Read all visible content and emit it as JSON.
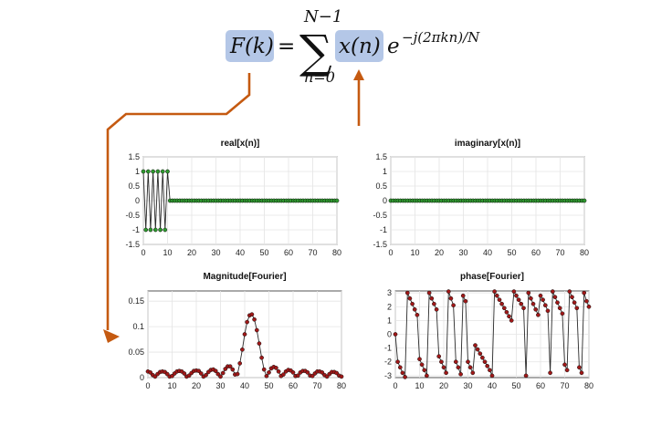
{
  "equation": {
    "lhs": "F(k)",
    "equals": "=",
    "sum_upper": "N−1",
    "sum_symbol": "∑",
    "sum_lower": "n=0",
    "term": "x(n)",
    "exp_base": "e",
    "exp_power": "−j(2πkn)/N",
    "highlight_color": "#b4c7e7"
  },
  "arrow_color": "#c55a11",
  "chart_data": [
    {
      "type": "line",
      "title": "real[x(n)]",
      "xlim": [
        0,
        80
      ],
      "ylim": [
        -1.5,
        1.5
      ],
      "xticks": [
        "0",
        "10",
        "20",
        "30",
        "40",
        "50",
        "60",
        "70",
        "80"
      ],
      "yticks": [
        "1.5",
        "1",
        "0.5",
        "0",
        "-0.5",
        "-1",
        "-1.5"
      ],
      "grid": true,
      "marker_color": "#2e9a2e",
      "x": [
        0,
        1,
        2,
        3,
        4,
        5,
        6,
        7,
        8,
        9,
        10,
        11,
        12,
        13,
        14,
        15,
        16,
        17,
        18,
        19,
        20,
        21,
        22,
        23,
        24,
        25,
        26,
        27,
        28,
        29,
        30,
        31,
        32,
        33,
        34,
        35,
        36,
        37,
        38,
        39,
        40,
        41,
        42,
        43,
        44,
        45,
        46,
        47,
        48,
        49,
        50,
        51,
        52,
        53,
        54,
        55,
        56,
        57,
        58,
        59,
        60,
        61,
        62,
        63,
        64,
        65,
        66,
        67,
        68,
        69,
        70,
        71,
        72,
        73,
        74,
        75,
        76,
        77,
        78,
        79,
        80
      ],
      "values": [
        1,
        -1,
        1,
        -1,
        1,
        -1,
        1,
        -1,
        1,
        -1,
        1,
        0,
        0,
        0,
        0,
        0,
        0,
        0,
        0,
        0,
        0,
        0,
        0,
        0,
        0,
        0,
        0,
        0,
        0,
        0,
        0,
        0,
        0,
        0,
        0,
        0,
        0,
        0,
        0,
        0,
        0,
        0,
        0,
        0,
        0,
        0,
        0,
        0,
        0,
        0,
        0,
        0,
        0,
        0,
        0,
        0,
        0,
        0,
        0,
        0,
        0,
        0,
        0,
        0,
        0,
        0,
        0,
        0,
        0,
        0,
        0,
        0,
        0,
        0,
        0,
        0,
        0,
        0,
        0,
        0,
        0
      ]
    },
    {
      "type": "line",
      "title": "imaginary[x(n)]",
      "xlim": [
        0,
        80
      ],
      "ylim": [
        -1.5,
        1.5
      ],
      "xticks": [
        "0",
        "10",
        "20",
        "30",
        "40",
        "50",
        "60",
        "70",
        "80"
      ],
      "yticks": [
        "1.5",
        "1",
        "0.5",
        "0",
        "-0.5",
        "-1",
        "-1.5"
      ],
      "grid": true,
      "marker_color": "#2e9a2e",
      "x": [
        0,
        1,
        2,
        3,
        4,
        5,
        6,
        7,
        8,
        9,
        10,
        11,
        12,
        13,
        14,
        15,
        16,
        17,
        18,
        19,
        20,
        21,
        22,
        23,
        24,
        25,
        26,
        27,
        28,
        29,
        30,
        31,
        32,
        33,
        34,
        35,
        36,
        37,
        38,
        39,
        40,
        41,
        42,
        43,
        44,
        45,
        46,
        47,
        48,
        49,
        50,
        51,
        52,
        53,
        54,
        55,
        56,
        57,
        58,
        59,
        60,
        61,
        62,
        63,
        64,
        65,
        66,
        67,
        68,
        69,
        70,
        71,
        72,
        73,
        74,
        75,
        76,
        77,
        78,
        79,
        80
      ],
      "values": [
        0,
        0,
        0,
        0,
        0,
        0,
        0,
        0,
        0,
        0,
        0,
        0,
        0,
        0,
        0,
        0,
        0,
        0,
        0,
        0,
        0,
        0,
        0,
        0,
        0,
        0,
        0,
        0,
        0,
        0,
        0,
        0,
        0,
        0,
        0,
        0,
        0,
        0,
        0,
        0,
        0,
        0,
        0,
        0,
        0,
        0,
        0,
        0,
        0,
        0,
        0,
        0,
        0,
        0,
        0,
        0,
        0,
        0,
        0,
        0,
        0,
        0,
        0,
        0,
        0,
        0,
        0,
        0,
        0,
        0,
        0,
        0,
        0,
        0,
        0,
        0,
        0,
        0,
        0,
        0,
        0
      ]
    },
    {
      "type": "line",
      "title": "Magnitude[Fourier]",
      "xlim": [
        0,
        80
      ],
      "ylim": [
        0,
        0.17
      ],
      "xticks": [
        "0",
        "10",
        "20",
        "30",
        "40",
        "50",
        "60",
        "70",
        "80"
      ],
      "yticks": [
        "0.15",
        "0.1",
        "0.05",
        "0"
      ],
      "ytick_values": [
        0.15,
        0.1,
        0.05,
        0
      ],
      "grid": true,
      "marker_color": "#a01818",
      "x": [
        0,
        1,
        2,
        3,
        4,
        5,
        6,
        7,
        8,
        9,
        10,
        11,
        12,
        13,
        14,
        15,
        16,
        17,
        18,
        19,
        20,
        21,
        22,
        23,
        24,
        25,
        26,
        27,
        28,
        29,
        30,
        31,
        32,
        33,
        34,
        35,
        36,
        37,
        38,
        39,
        40,
        41,
        42,
        43,
        44,
        45,
        46,
        47,
        48,
        49,
        50,
        51,
        52,
        53,
        54,
        55,
        56,
        57,
        58,
        59,
        60,
        61,
        62,
        63,
        64,
        65,
        66,
        67,
        68,
        69,
        70,
        71,
        72,
        73,
        74,
        75,
        76,
        77,
        78,
        79,
        80
      ],
      "values": [
        0.012,
        0.01,
        0.005,
        0.002,
        0.007,
        0.011,
        0.012,
        0.011,
        0.007,
        0.002,
        0.003,
        0.008,
        0.012,
        0.013,
        0.012,
        0.008,
        0.002,
        0.004,
        0.009,
        0.013,
        0.014,
        0.013,
        0.008,
        0.002,
        0.005,
        0.011,
        0.015,
        0.016,
        0.013,
        0.007,
        0.002,
        0.009,
        0.017,
        0.022,
        0.022,
        0.016,
        0.006,
        0.007,
        0.028,
        0.055,
        0.085,
        0.109,
        0.122,
        0.124,
        0.114,
        0.093,
        0.067,
        0.039,
        0.016,
        0.003,
        0.01,
        0.018,
        0.021,
        0.019,
        0.012,
        0.003,
        0.006,
        0.012,
        0.015,
        0.014,
        0.01,
        0.003,
        0.004,
        0.01,
        0.013,
        0.013,
        0.01,
        0.004,
        0.003,
        0.008,
        0.012,
        0.012,
        0.01,
        0.005,
        0.002,
        0.007,
        0.011,
        0.011,
        0.009,
        0.004,
        0.002
      ]
    },
    {
      "type": "line",
      "title": "phase[Fourier]",
      "xlim": [
        0,
        80
      ],
      "ylim": [
        -3.1416,
        3.1416
      ],
      "xticks": [
        "0",
        "10",
        "20",
        "30",
        "40",
        "50",
        "60",
        "70",
        "80"
      ],
      "yticks": [
        "3",
        "2",
        "1",
        "0",
        "-1",
        "-2",
        "-3"
      ],
      "ytick_values": [
        3,
        2,
        1,
        0,
        -1,
        -2,
        -3
      ],
      "grid": true,
      "marker_color": "#a01818",
      "x": [
        0,
        1,
        2,
        3,
        4,
        5,
        6,
        7,
        8,
        9,
        10,
        11,
        12,
        13,
        14,
        15,
        16,
        17,
        18,
        19,
        20,
        21,
        22,
        23,
        24,
        25,
        26,
        27,
        28,
        29,
        30,
        31,
        32,
        33,
        34,
        35,
        36,
        37,
        38,
        39,
        40,
        41,
        42,
        43,
        44,
        45,
        46,
        47,
        48,
        49,
        50,
        51,
        52,
        53,
        54,
        55,
        56,
        57,
        58,
        59,
        60,
        61,
        62,
        63,
        64,
        65,
        66,
        67,
        68,
        69,
        70,
        71,
        72,
        73,
        74,
        75,
        76,
        77,
        78,
        79,
        80
      ],
      "values": [
        0,
        -2.0,
        -2.4,
        -2.8,
        -3.1,
        3.0,
        2.6,
        2.2,
        1.8,
        1.4,
        -1.8,
        -2.2,
        -2.6,
        -3.0,
        3.0,
        2.6,
        2.2,
        1.8,
        -1.6,
        -2.0,
        -2.4,
        -2.8,
        3.1,
        2.6,
        2.1,
        -2.0,
        -2.4,
        -2.9,
        2.8,
        2.4,
        -2.0,
        -2.4,
        -2.8,
        -0.8,
        -1.1,
        -1.4,
        -1.7,
        -2.0,
        -2.3,
        -2.6,
        -3.0,
        3.1,
        2.8,
        2.5,
        2.2,
        1.9,
        1.6,
        1.3,
        1.0,
        3.1,
        2.8,
        2.5,
        2.2,
        1.9,
        -3.0,
        3.0,
        2.6,
        2.2,
        1.8,
        1.4,
        2.8,
        2.5,
        2.1,
        1.7,
        -2.8,
        3.1,
        2.7,
        2.3,
        1.9,
        1.5,
        -2.2,
        -2.6,
        3.1,
        2.7,
        2.3,
        1.9,
        -2.4,
        -2.8,
        3.0,
        2.4,
        2.0
      ]
    }
  ]
}
